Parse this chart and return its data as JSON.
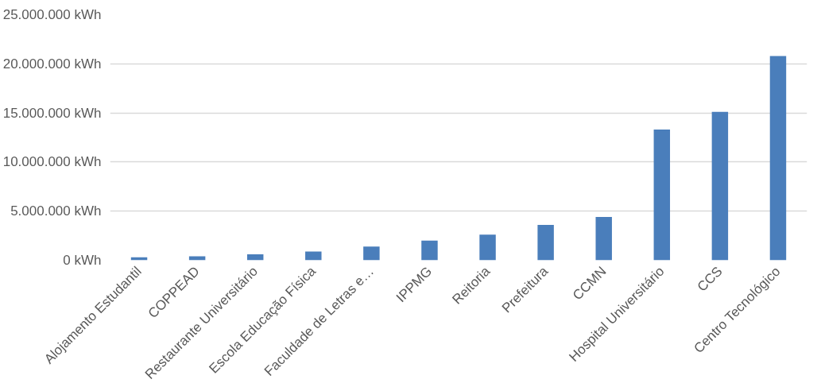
{
  "chart_data": {
    "type": "bar",
    "categories": [
      "Alojamento Estudantil",
      "COPPEAD",
      "Restaurante Universitário",
      "Escola Educação Física",
      "Faculdade de Letras e…",
      "IPPMG",
      "Reitoria",
      "Prefeitura",
      "CCMN",
      "Hospital Universitário",
      "CCS",
      "Centro Tecnológico"
    ],
    "values": [
      300000,
      400000,
      600000,
      900000,
      1400000,
      2000000,
      2600000,
      3600000,
      4400000,
      13300000,
      15100000,
      20800000
    ],
    "color": "#4a7ebb",
    "ylim": [
      0,
      25000000
    ],
    "yticks": [
      {
        "value": 0,
        "label": "0 kWh"
      },
      {
        "value": 5000000,
        "label": "5.000.000 kWh"
      },
      {
        "value": 10000000,
        "label": "10.000.000 kWh"
      },
      {
        "value": 15000000,
        "label": "15.000.000 kWh"
      },
      {
        "value": 20000000,
        "label": "20.000.000 kWh"
      },
      {
        "value": 25000000,
        "label": "25.000.000 kWh"
      }
    ],
    "grid": "y"
  }
}
